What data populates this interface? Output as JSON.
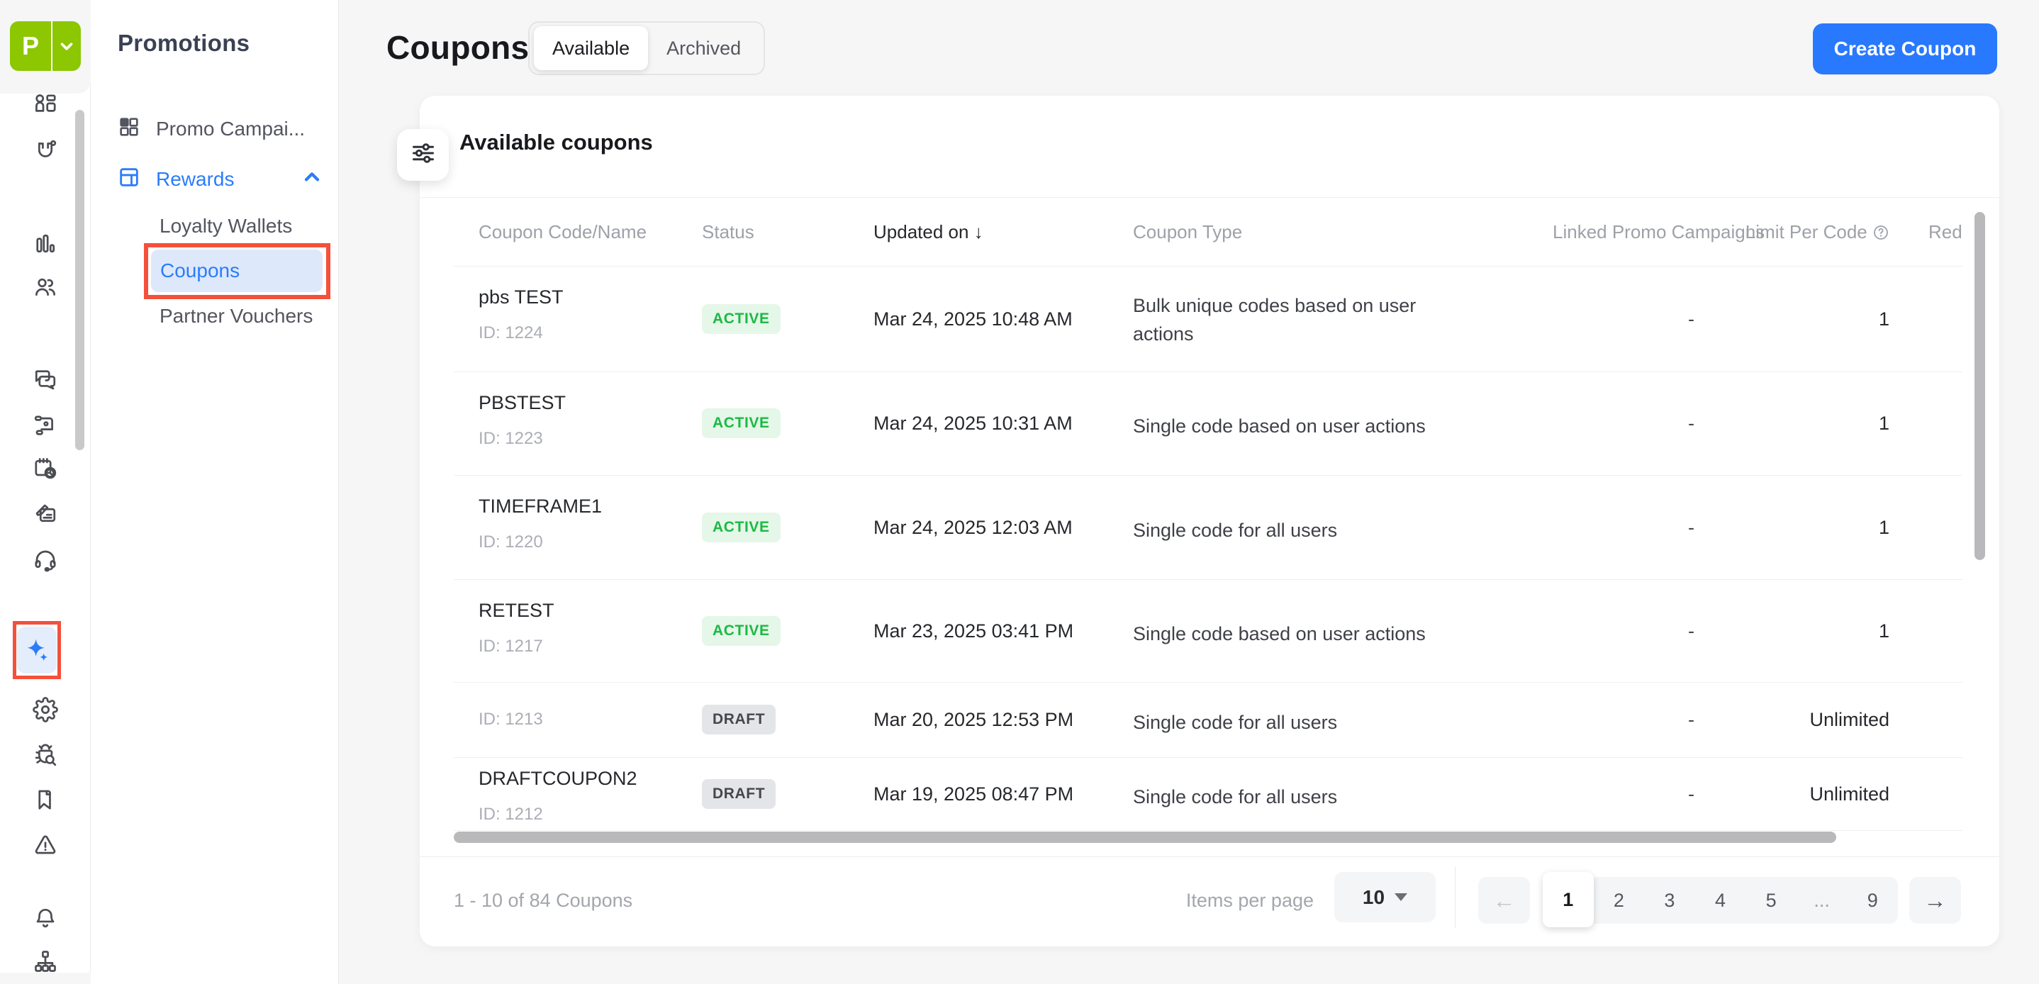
{
  "colors": {
    "accent_blue": "#2B7CFA",
    "logo_green": "#8CC702",
    "annotation_red": "#F4503C",
    "active_badge": "#1CB944",
    "active_badge_bg": "#E5F7E8",
    "draft_badge": "#45474D",
    "draft_badge_bg": "#E4E5E8"
  },
  "logo": {
    "initial": "P",
    "chevron_icon": "chevron-down-icon"
  },
  "sidebar_rail": {
    "icons_top": [
      "dashboard-icon",
      "magnet-icon"
    ],
    "icons_analytics": [
      "bar-chart-icon",
      "users-icon"
    ],
    "icons_middle": [
      "chat-icon",
      "flow-icon",
      "calendar-history-icon",
      "ticket-edit-icon",
      "headset-icon"
    ],
    "highlighted_icon": "sparkle-icon",
    "icons_settings": [
      "gear-icon",
      "bug-search-icon",
      "bookmark-icon",
      "warning-icon"
    ],
    "icons_bottom": [
      "bell-icon",
      "sitemap-icon"
    ]
  },
  "nav_panel": {
    "title": "Promotions",
    "items": [
      {
        "label": "Promo Campai...",
        "icon": "grid-icon",
        "active": false
      },
      {
        "label": "Rewards",
        "icon": "layout-icon",
        "active": true,
        "expanded": true
      }
    ],
    "sub_items": [
      {
        "label": "Loyalty Wallets",
        "active": false
      },
      {
        "label": "Coupons",
        "active": true,
        "annotated": true
      },
      {
        "label": "Partner Vouchers",
        "active": false
      }
    ]
  },
  "header": {
    "title": "Coupons",
    "tabs": [
      {
        "label": "Available",
        "active": true
      },
      {
        "label": "Archived",
        "active": false
      }
    ],
    "create_button": "Create Coupon"
  },
  "card": {
    "title": "Available coupons",
    "filter_icon": "sliders-icon",
    "columns": {
      "code_name": "Coupon Code/Name",
      "status": "Status",
      "updated": "Updated on",
      "updated_sort_icon": "↓",
      "type": "Coupon Type",
      "linked": "Linked Promo Campaigns",
      "limit": "Limit Per Code",
      "limit_help_icon": "?",
      "redemptions_clipped": "Red"
    },
    "rows": [
      {
        "name": "pbs TEST",
        "id": "ID: 1224",
        "status": "ACTIVE",
        "updated": "Mar 24, 2025 10:48 AM",
        "type": "Bulk unique codes based on user actions",
        "linked": "-",
        "limit": "1"
      },
      {
        "name": "PBSTEST",
        "id": "ID: 1223",
        "status": "ACTIVE",
        "updated": "Mar 24, 2025 10:31 AM",
        "type": "Single code based on user actions",
        "linked": "-",
        "limit": "1"
      },
      {
        "name": "TIMEFRAME1",
        "id": "ID: 1220",
        "status": "ACTIVE",
        "updated": "Mar 24, 2025 12:03 AM",
        "type": "Single code for all users",
        "linked": "-",
        "limit": "1"
      },
      {
        "name": "RETEST",
        "id": "ID: 1217",
        "status": "ACTIVE",
        "updated": "Mar 23, 2025 03:41 PM",
        "type": "Single code based on user actions",
        "linked": "-",
        "limit": "1"
      },
      {
        "name": "",
        "id": "ID: 1213",
        "status": "DRAFT",
        "updated": "Mar 20, 2025 12:53 PM",
        "type": "Single code for all users",
        "linked": "-",
        "limit": "Unlimited"
      },
      {
        "name": "DRAFTCOUPON2",
        "id": "ID: 1212",
        "status": "DRAFT",
        "updated": "Mar 19, 2025 08:47 PM",
        "type": "Single code for all users",
        "linked": "-",
        "limit": "Unlimited"
      }
    ],
    "footer": {
      "range_label": "1 - 10 of 84 Coupons",
      "items_per_page_label": "Items per page",
      "items_per_page_value": "10",
      "pagination": {
        "prev_icon": "←",
        "next_icon": "→",
        "pages": [
          "1",
          "2",
          "3",
          "4",
          "5",
          "...",
          "9"
        ],
        "active_page": "1"
      }
    }
  }
}
